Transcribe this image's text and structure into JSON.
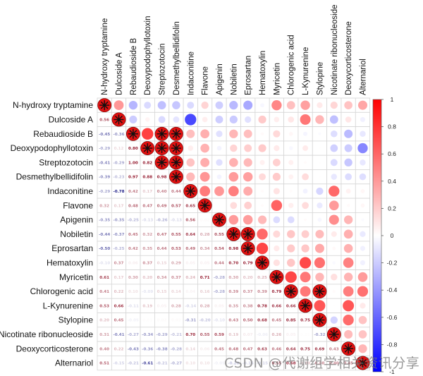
{
  "chart_data": {
    "type": "heatmap",
    "subtype": "correlation-matrix (upper: circles, lower: numbers, diagonal: significance star)",
    "title": "",
    "labels": [
      "N-hydroxy tryptamine",
      "Dulcoside A",
      "Rebaudioside B",
      "Deoxypodophyllotoxin",
      "Streptozotocin",
      "Desmethylbellidifolin",
      "Indaconitine",
      "Flavone",
      "Apigenin",
      "Nobiletin",
      "Eprosartan",
      "Hematoxylin",
      "Myricetin",
      "Chlorogenic acid",
      "L-Kynurenine",
      "Stylopine",
      "Nicotinate ribonucleoside",
      "Deoxycorticosterone",
      "Alternariol"
    ],
    "lower_triangle": [
      [],
      [
        0.56
      ],
      [
        -0.45,
        -0.36
      ],
      [
        -0.29,
        0.12,
        0.8
      ],
      [
        -0.41,
        -0.29,
        1.0,
        0.82
      ],
      [
        -0.39,
        -0.23,
        0.97,
        0.88,
        0.98
      ],
      [
        -0.29,
        -0.78,
        0.42,
        0.17,
        0.4,
        0.44
      ],
      [
        0.32,
        0.17,
        0.48,
        0.47,
        0.49,
        0.57,
        0.65
      ],
      [
        -0.35,
        -0.35,
        -0.25,
        -0.13,
        -0.26,
        -0.13,
        0.56,
        0.02
      ],
      [
        -0.44,
        -0.37,
        0.45,
        0.32,
        0.47,
        0.55,
        0.64,
        0.28,
        0.55
      ],
      [
        -0.5,
        -0.25,
        0.42,
        0.35,
        0.44,
        0.53,
        0.49,
        0.34,
        0.54,
        0.98
      ],
      [
        -0.1,
        0.37,
        0.06,
        0.37,
        0.15,
        0.29,
        0.05,
        0.05,
        0.44,
        0.7,
        0.79
      ],
      [
        0.61,
        0.17,
        0.3,
        0.2,
        0.34,
        0.37,
        0.24,
        0.71,
        -0.28,
        0.3,
        0.2,
        0.25
      ],
      [
        0.41,
        0.22,
        0.1,
        -0.09,
        0.15,
        0.14,
        0.04,
        0.16,
        -0.28,
        0.39,
        0.37,
        0.39,
        0.79
      ],
      [
        0.53,
        0.66,
        -0.11,
        0.19,
        0.05,
        0.28,
        -0.14,
        0.28,
        0.05,
        0.35,
        0.38,
        0.78,
        0.66,
        0.66
      ],
      [
        0.2,
        0.45,
        -0.05,
        0.01,
        0.02,
        0.02,
        -0.31,
        -0.2,
        -0.1,
        0.43,
        0.5,
        0.68,
        0.45,
        0.85,
        0.75
      ],
      [
        0.31,
        -0.41,
        -0.27,
        -0.34,
        -0.29,
        -0.21,
        0.7,
        0.55,
        0.59,
        0.19,
        0.07,
        -0.06,
        0.26,
        0.05,
        0.01,
        -0.32
      ],
      [
        0.4,
        0.22,
        -0.43,
        -0.36,
        -0.38,
        -0.28,
        0.14,
        0.06,
        0.45,
        0.48,
        0.47,
        0.63,
        0.46,
        0.64,
        0.75,
        0.69,
        0.43
      ],
      [
        0.51,
        -0.15,
        -0.21,
        -0.61,
        -0.21,
        -0.27,
        0.1,
        0.1,
        -0.05,
        -0.2,
        -0.15,
        -0.15,
        0.55,
        0.68,
        0.2,
        0.4,
        0.4,
        0.45
      ]
    ],
    "diagonal": 1.0,
    "significant_pairs": [
      [
        2,
        4
      ],
      [
        2,
        5
      ],
      [
        3,
        4
      ],
      [
        3,
        5
      ],
      [
        4,
        5
      ],
      [
        9,
        10
      ],
      [
        13,
        15
      ]
    ],
    "colorbar": {
      "range": [
        -1,
        1
      ],
      "ticks": [
        "1",
        "0.8",
        "0.6",
        "0.4",
        "0.2",
        "0",
        "-0.2",
        "-0.4",
        "-0.6",
        "-0.8",
        "-1"
      ],
      "low_color": "#0000ff",
      "mid_color": "#ffffff",
      "high_color": "#ff0000"
    },
    "legend_position": "right"
  },
  "watermark": "CSDN @代谢组学相关资讯分享"
}
